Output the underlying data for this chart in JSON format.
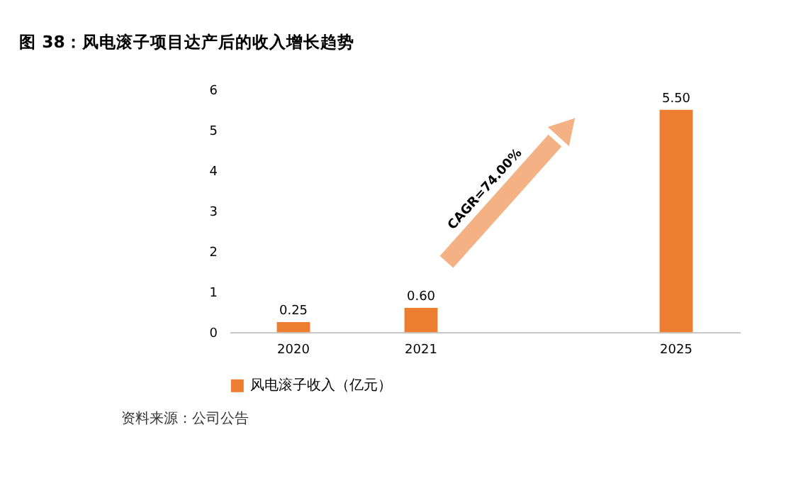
{
  "chart_data": {
    "type": "bar",
    "title": "图 38：风电滚子项目达产后的收入增长趋势",
    "categories": [
      "2020",
      "2021",
      null,
      "2025"
    ],
    "series": [
      {
        "name": "风电滚子收入（亿元）",
        "color": "#ed7d31",
        "values": [
          0.25,
          0.6,
          null,
          5.5
        ],
        "value_labels": [
          "0.25",
          "0.60",
          null,
          "5.50"
        ]
      }
    ],
    "ylim": [
      0,
      6
    ],
    "yticks": [
      0,
      1,
      2,
      3,
      4,
      5,
      6
    ],
    "grid": false,
    "legend": "bottom",
    "annotations": [
      "CAGR=74.00%",
      "资料来源：公司公告"
    ]
  }
}
